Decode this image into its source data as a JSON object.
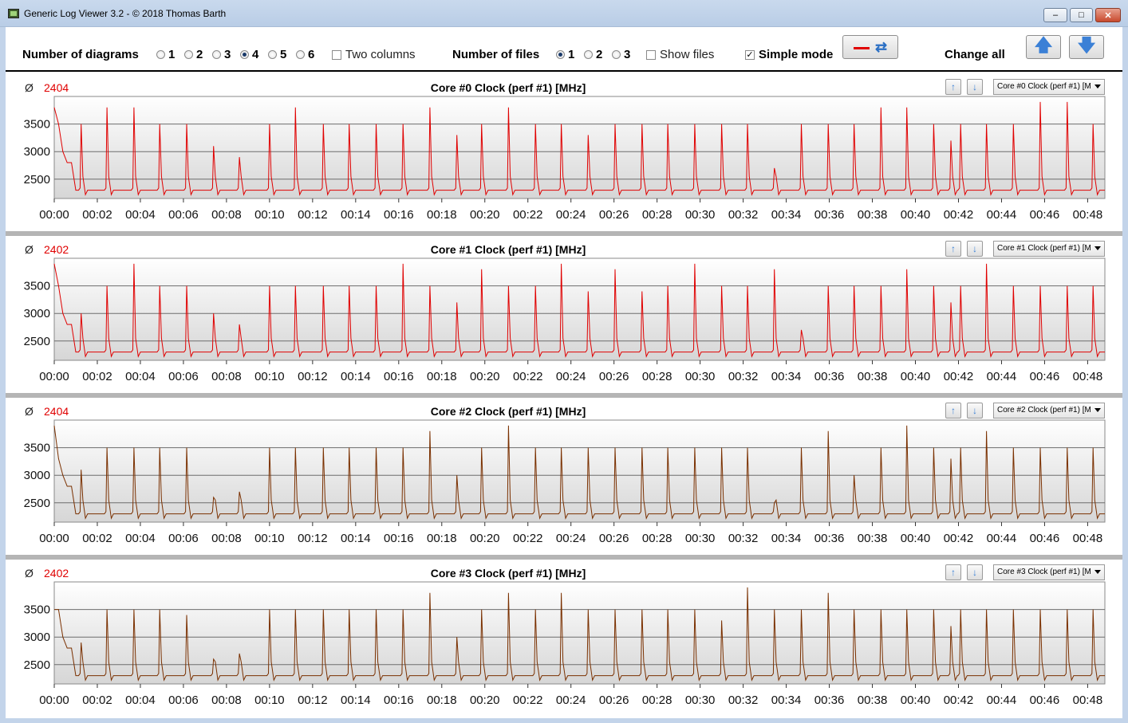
{
  "window": {
    "title": "Generic Log Viewer 3.2 - © 2018 Thomas Barth"
  },
  "toolbar": {
    "num_diagrams_label": "Number of diagrams",
    "diagram_options": [
      "1",
      "2",
      "3",
      "4",
      "5",
      "6"
    ],
    "diagram_selected": "4",
    "two_columns_label": "Two columns",
    "two_columns_checked": false,
    "num_files_label": "Number of files",
    "file_options": [
      "1",
      "2",
      "3"
    ],
    "file_selected": "1",
    "show_files_label": "Show files",
    "show_files_checked": false,
    "simple_mode_label": "Simple mode",
    "simple_mode_checked": true,
    "change_all_label": "Change all"
  },
  "colors": {
    "series_main": "#e00000",
    "series_dark": "#7a3000",
    "grid": "#6d6d6d"
  },
  "panels": [
    {
      "avg_symbol": "Ø",
      "avg_value": "2404",
      "title": "Core #0 Clock (perf #1) [MHz]",
      "select_value": "Core #0 Clock (perf #1) [M",
      "line_color": "#e00000"
    },
    {
      "avg_symbol": "Ø",
      "avg_value": "2402",
      "title": "Core #1 Clock (perf #1) [MHz]",
      "select_value": "Core #1 Clock (perf #1) [M",
      "line_color": "#e00000"
    },
    {
      "avg_symbol": "Ø",
      "avg_value": "2404",
      "title": "Core #2 Clock (perf #1) [MHz]",
      "select_value": "Core #2 Clock (perf #1) [M",
      "line_color": "#7a3000"
    },
    {
      "avg_symbol": "Ø",
      "avg_value": "2402",
      "title": "Core #3 Clock (perf #1) [MHz]",
      "select_value": "Core #3 Clock (perf #1) [M",
      "line_color": "#7a3000"
    }
  ],
  "chart_data": [
    {
      "type": "line",
      "title": "Core #0 Clock (perf #1) [MHz]",
      "ylabel": "",
      "xlabel": "",
      "yticks": [
        2500,
        3000,
        3500
      ],
      "ylim": [
        2150,
        4000
      ],
      "xticks": [
        "00:00",
        "00:02",
        "00:04",
        "00:06",
        "00:08",
        "00:10",
        "00:12",
        "00:14",
        "00:16",
        "00:18",
        "00:20",
        "00:22",
        "00:24",
        "00:26",
        "00:28",
        "00:30",
        "00:32",
        "00:34",
        "00:36",
        "00:38",
        "00:40",
        "00:42",
        "00:44",
        "00:46",
        "00:48"
      ],
      "xlim_min": [
        0,
        48.8
      ],
      "baseline": 2300,
      "start_values": [
        3800,
        3500,
        3000,
        2800,
        2800
      ],
      "spikes": [
        [
          1.25,
          3500
        ],
        [
          2.45,
          3800
        ],
        [
          3.7,
          3800
        ],
        [
          4.9,
          3500
        ],
        [
          6.15,
          3500
        ],
        [
          7.4,
          3100
        ],
        [
          8.6,
          2900
        ],
        [
          10.0,
          3500
        ],
        [
          11.2,
          3800
        ],
        [
          12.5,
          3500
        ],
        [
          13.7,
          3500
        ],
        [
          14.95,
          3500
        ],
        [
          16.2,
          3500
        ],
        [
          17.45,
          3800
        ],
        [
          18.7,
          3300
        ],
        [
          19.85,
          3500
        ],
        [
          21.1,
          3800
        ],
        [
          22.35,
          3500
        ],
        [
          23.55,
          3500
        ],
        [
          24.8,
          3300
        ],
        [
          26.05,
          3500
        ],
        [
          27.3,
          3500
        ],
        [
          28.5,
          3500
        ],
        [
          29.75,
          3500
        ],
        [
          31.0,
          3500
        ],
        [
          32.2,
          3500
        ],
        [
          33.45,
          2700
        ],
        [
          34.7,
          3500
        ],
        [
          35.95,
          3500
        ],
        [
          37.15,
          3500
        ],
        [
          38.4,
          3800
        ],
        [
          39.6,
          3800
        ],
        [
          40.85,
          3500
        ],
        [
          41.65,
          3200
        ],
        [
          42.1,
          3500
        ],
        [
          43.3,
          3500
        ],
        [
          44.55,
          3500
        ],
        [
          45.8,
          3900
        ],
        [
          47.05,
          3900
        ],
        [
          48.25,
          3500
        ]
      ]
    },
    {
      "type": "line",
      "title": "Core #1 Clock (perf #1) [MHz]",
      "ylabel": "",
      "xlabel": "",
      "yticks": [
        2500,
        3000,
        3500
      ],
      "ylim": [
        2150,
        4000
      ],
      "xticks": [
        "00:00",
        "00:02",
        "00:04",
        "00:06",
        "00:08",
        "00:10",
        "00:12",
        "00:14",
        "00:16",
        "00:18",
        "00:20",
        "00:22",
        "00:24",
        "00:26",
        "00:28",
        "00:30",
        "00:32",
        "00:34",
        "00:36",
        "00:38",
        "00:40",
        "00:42",
        "00:44",
        "00:46",
        "00:48"
      ],
      "xlim_min": [
        0,
        48.8
      ],
      "baseline": 2300,
      "start_values": [
        3900,
        3500,
        3000,
        2800,
        2800
      ],
      "spikes": [
        [
          1.25,
          3000
        ],
        [
          2.45,
          3500
        ],
        [
          3.7,
          3900
        ],
        [
          4.9,
          3500
        ],
        [
          6.15,
          3500
        ],
        [
          7.4,
          3000
        ],
        [
          8.6,
          2800
        ],
        [
          10.0,
          3500
        ],
        [
          11.2,
          3500
        ],
        [
          12.5,
          3500
        ],
        [
          13.7,
          3500
        ],
        [
          14.95,
          3500
        ],
        [
          16.2,
          3900
        ],
        [
          17.45,
          3500
        ],
        [
          18.7,
          3200
        ],
        [
          19.85,
          3800
        ],
        [
          21.1,
          3500
        ],
        [
          22.35,
          3500
        ],
        [
          23.55,
          3900
        ],
        [
          24.8,
          3400
        ],
        [
          26.05,
          3800
        ],
        [
          27.3,
          3400
        ],
        [
          28.5,
          3500
        ],
        [
          29.75,
          3900
        ],
        [
          31.0,
          3500
        ],
        [
          32.2,
          3500
        ],
        [
          33.45,
          3800
        ],
        [
          34.7,
          2700
        ],
        [
          35.95,
          3500
        ],
        [
          37.15,
          3500
        ],
        [
          38.4,
          3500
        ],
        [
          39.6,
          3800
        ],
        [
          40.85,
          3500
        ],
        [
          41.65,
          3200
        ],
        [
          42.1,
          3500
        ],
        [
          43.3,
          3900
        ],
        [
          44.55,
          3500
        ],
        [
          45.8,
          3500
        ],
        [
          47.05,
          3500
        ],
        [
          48.25,
          3500
        ]
      ]
    },
    {
      "type": "line",
      "title": "Core #2 Clock (perf #1) [MHz]",
      "ylabel": "",
      "xlabel": "",
      "yticks": [
        2500,
        3000,
        3500
      ],
      "ylim": [
        2150,
        4000
      ],
      "xticks": [
        "00:00",
        "00:02",
        "00:04",
        "00:06",
        "00:08",
        "00:10",
        "00:12",
        "00:14",
        "00:16",
        "00:18",
        "00:20",
        "00:22",
        "00:24",
        "00:26",
        "00:28",
        "00:30",
        "00:32",
        "00:34",
        "00:36",
        "00:38",
        "00:40",
        "00:42",
        "00:44",
        "00:46",
        "00:48"
      ],
      "xlim_min": [
        0,
        48.8
      ],
      "baseline": 2300,
      "start_values": [
        3900,
        3300,
        3000,
        2800,
        2800
      ],
      "spikes": [
        [
          1.25,
          3100
        ],
        [
          2.45,
          3500
        ],
        [
          3.7,
          3500
        ],
        [
          4.9,
          3500
        ],
        [
          6.15,
          3500
        ],
        [
          7.4,
          2600
        ],
        [
          8.6,
          2700
        ],
        [
          10.0,
          3500
        ],
        [
          11.2,
          3500
        ],
        [
          12.5,
          3500
        ],
        [
          13.7,
          3500
        ],
        [
          14.95,
          3500
        ],
        [
          16.2,
          3500
        ],
        [
          17.45,
          3800
        ],
        [
          18.7,
          3000
        ],
        [
          19.85,
          3500
        ],
        [
          21.1,
          3900
        ],
        [
          22.35,
          3500
        ],
        [
          23.55,
          3500
        ],
        [
          24.8,
          3500
        ],
        [
          26.05,
          3500
        ],
        [
          27.3,
          3500
        ],
        [
          28.5,
          3500
        ],
        [
          29.75,
          3500
        ],
        [
          31.0,
          3500
        ],
        [
          32.2,
          3500
        ],
        [
          33.45,
          2500
        ],
        [
          34.7,
          3500
        ],
        [
          35.95,
          3800
        ],
        [
          37.15,
          3000
        ],
        [
          38.4,
          3500
        ],
        [
          39.6,
          3900
        ],
        [
          40.85,
          3500
        ],
        [
          41.65,
          3300
        ],
        [
          42.1,
          3500
        ],
        [
          43.3,
          3800
        ],
        [
          44.55,
          3500
        ],
        [
          45.8,
          3500
        ],
        [
          47.05,
          3500
        ],
        [
          48.25,
          3500
        ]
      ]
    },
    {
      "type": "line",
      "title": "Core #3 Clock (perf #1) [MHz]",
      "ylabel": "",
      "xlabel": "",
      "yticks": [
        2500,
        3000,
        3500
      ],
      "ylim": [
        2150,
        4000
      ],
      "xticks": [
        "00:00",
        "00:02",
        "00:04",
        "00:06",
        "00:08",
        "00:10",
        "00:12",
        "00:14",
        "00:16",
        "00:18",
        "00:20",
        "00:22",
        "00:24",
        "00:26",
        "00:28",
        "00:30",
        "00:32",
        "00:34",
        "00:36",
        "00:38",
        "00:40",
        "00:42",
        "00:44",
        "00:46",
        "00:48"
      ],
      "xlim_min": [
        0,
        48.8
      ],
      "baseline": 2300,
      "start_values": [
        3500,
        3500,
        3000,
        2800,
        2800
      ],
      "spikes": [
        [
          1.25,
          2900
        ],
        [
          2.45,
          3500
        ],
        [
          3.7,
          3500
        ],
        [
          4.9,
          3500
        ],
        [
          6.15,
          3400
        ],
        [
          7.4,
          2600
        ],
        [
          8.6,
          2700
        ],
        [
          10.0,
          3500
        ],
        [
          11.2,
          3500
        ],
        [
          12.5,
          3500
        ],
        [
          13.7,
          3500
        ],
        [
          14.95,
          3500
        ],
        [
          16.2,
          3500
        ],
        [
          17.45,
          3800
        ],
        [
          18.7,
          3000
        ],
        [
          19.85,
          3500
        ],
        [
          21.1,
          3800
        ],
        [
          22.35,
          3500
        ],
        [
          23.55,
          3800
        ],
        [
          24.8,
          3500
        ],
        [
          26.05,
          3500
        ],
        [
          27.3,
          3500
        ],
        [
          28.5,
          3500
        ],
        [
          29.75,
          3500
        ],
        [
          31.0,
          3300
        ],
        [
          32.2,
          3900
        ],
        [
          33.45,
          3500
        ],
        [
          34.7,
          3500
        ],
        [
          35.95,
          3800
        ],
        [
          37.15,
          3500
        ],
        [
          38.4,
          3500
        ],
        [
          39.6,
          3500
        ],
        [
          40.85,
          3500
        ],
        [
          41.65,
          3200
        ],
        [
          42.1,
          3500
        ],
        [
          43.3,
          3500
        ],
        [
          44.55,
          3500
        ],
        [
          45.8,
          3500
        ],
        [
          47.05,
          3500
        ],
        [
          48.25,
          3500
        ]
      ]
    }
  ]
}
